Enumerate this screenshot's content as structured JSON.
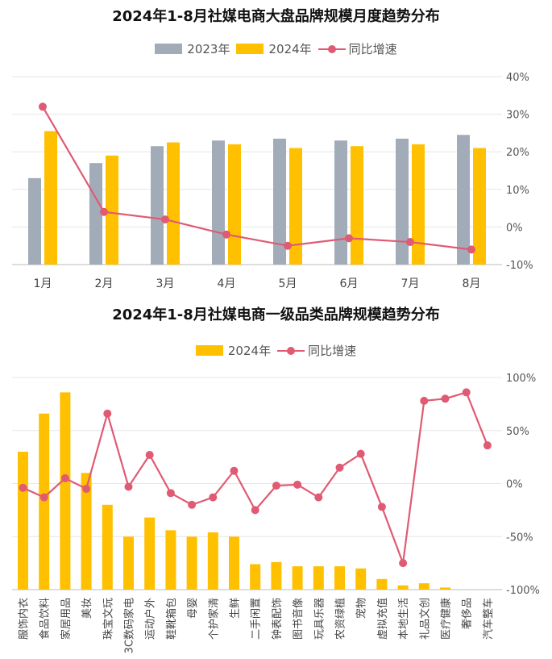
{
  "chart_data": [
    {
      "type": "bar",
      "title": "2024年1-8月社媒电商大盘品牌规模月度趋势分布",
      "categories": [
        "1月",
        "2月",
        "3月",
        "4月",
        "5月",
        "6月",
        "7月",
        "8月"
      ],
      "series": [
        {
          "name": "2023年",
          "values": [
            0.46,
            0.54,
            0.63,
            0.66,
            0.67,
            0.66,
            0.67,
            0.69
          ],
          "color": "#a2acb8"
        },
        {
          "name": "2024年",
          "values": [
            0.71,
            0.58,
            0.65,
            0.64,
            0.62,
            0.63,
            0.64,
            0.62
          ],
          "color": "#ffc000"
        },
        {
          "name": "同比增速",
          "values": [
            32,
            4,
            2,
            -2,
            -5,
            -3,
            -4,
            -6
          ],
          "color": "#e05a73",
          "axis": "right",
          "unit": "%"
        }
      ],
      "right_ticks": [
        "40%",
        "30%",
        "20%",
        "10%",
        "0%",
        "-10%"
      ],
      "ylim_right": [
        -10,
        40
      ],
      "grid": true,
      "legend": "top"
    },
    {
      "type": "bar",
      "title": "2024年1-8月社媒电商一级品类品牌规模趋势分布",
      "categories": [
        "服饰内衣",
        "食品饮料",
        "家居用品",
        "美妆",
        "珠宝文玩",
        "3C数码家电",
        "运动户外",
        "鞋靴箱包",
        "母婴",
        "个护家清",
        "生鲜",
        "二手闲置",
        "钟表配饰",
        "图书音像",
        "玩具乐器",
        "农资绿植",
        "宠物",
        "虚拟充值",
        "本地生活",
        "礼品文创",
        "医疗健康",
        "奢侈品",
        "汽车整车"
      ],
      "series": [
        {
          "name": "2024年",
          "values": [
            0.65,
            0.83,
            0.93,
            0.55,
            0.4,
            0.25,
            0.34,
            0.28,
            0.25,
            0.27,
            0.25,
            0.12,
            0.13,
            0.11,
            0.11,
            0.11,
            0.1,
            0.05,
            0.02,
            0.03,
            0.01,
            0.0,
            0.0
          ],
          "color": "#ffc000"
        },
        {
          "name": "同比增速",
          "values": [
            -4,
            -13,
            5,
            -5,
            66,
            -3,
            27,
            -9,
            -20,
            -13,
            12,
            -25,
            -2,
            -1,
            -13,
            15,
            28,
            -22,
            -75,
            78,
            80,
            86,
            36
          ],
          "color": "#e05a73",
          "axis": "right",
          "unit": "%"
        }
      ],
      "right_ticks": [
        "100%",
        "50%",
        "0%",
        "-50%",
        "-100%"
      ],
      "ylim_right": [
        -100,
        100
      ],
      "grid": true,
      "legend": "top"
    }
  ]
}
